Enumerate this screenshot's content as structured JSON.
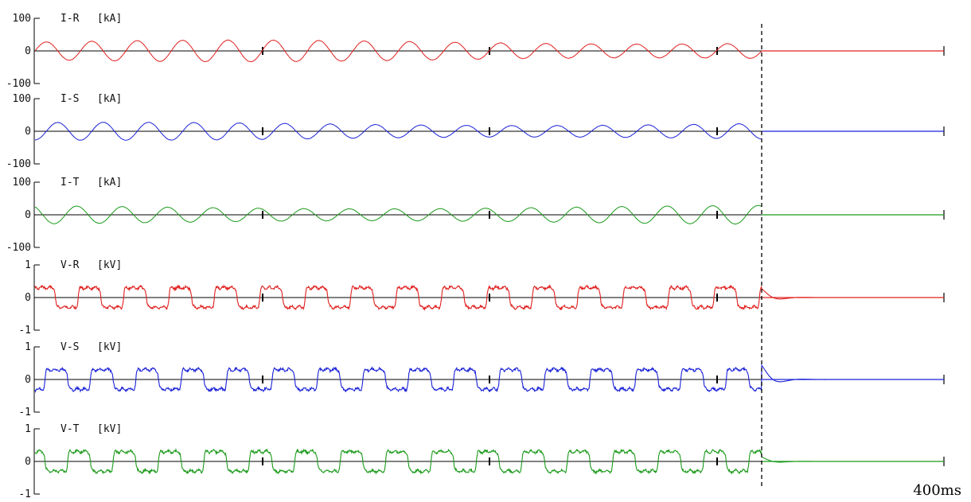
{
  "chart_data": [
    {
      "type": "line",
      "name_label": "I-R",
      "unit_label": "[kA]",
      "ylim": [
        -100,
        100
      ],
      "ytick_labels": [
        "100",
        "0",
        "-100"
      ],
      "wave": {
        "shape": "sine",
        "amplitude": 30,
        "color": "#e0201f"
      }
    },
    {
      "type": "line",
      "name_label": "I-S",
      "unit_label": "[kA]",
      "ylim": [
        -100,
        100
      ],
      "ytick_labels": [
        "100",
        "0",
        "-100"
      ],
      "wave": {
        "shape": "sine",
        "amplitude": 25,
        "color": "#1a22d6"
      }
    },
    {
      "type": "line",
      "name_label": "I-T",
      "unit_label": "[kA]",
      "ylim": [
        -100,
        100
      ],
      "ytick_labels": [
        "100",
        "0",
        "-100"
      ],
      "wave": {
        "shape": "sine",
        "amplitude": 26,
        "color": "#1a9a1a"
      }
    },
    {
      "type": "line",
      "name_label": "V-R",
      "unit_label": "[kV]",
      "ylim": [
        -1,
        1
      ],
      "ytick_labels": [
        "1",
        "0",
        "-1"
      ],
      "wave": {
        "shape": "square",
        "amplitude": 0.3,
        "color": "#e0201f"
      }
    },
    {
      "type": "line",
      "name_label": "V-S",
      "unit_label": "[kV]",
      "ylim": [
        -1,
        1
      ],
      "ytick_labels": [
        "1",
        "0",
        "-1"
      ],
      "wave": {
        "shape": "square",
        "amplitude": 0.3,
        "color": "#1a22d6"
      }
    },
    {
      "type": "line",
      "name_label": "V-T",
      "unit_label": "[kV]",
      "ylim": [
        -1,
        1
      ],
      "ytick_labels": [
        "1",
        "0",
        "-1"
      ],
      "wave": {
        "shape": "square",
        "amplitude": 0.3,
        "color": "#1a9a1a"
      }
    }
  ],
  "time_axis": {
    "end_label": "400ms",
    "cycles_before_break": 16
  }
}
